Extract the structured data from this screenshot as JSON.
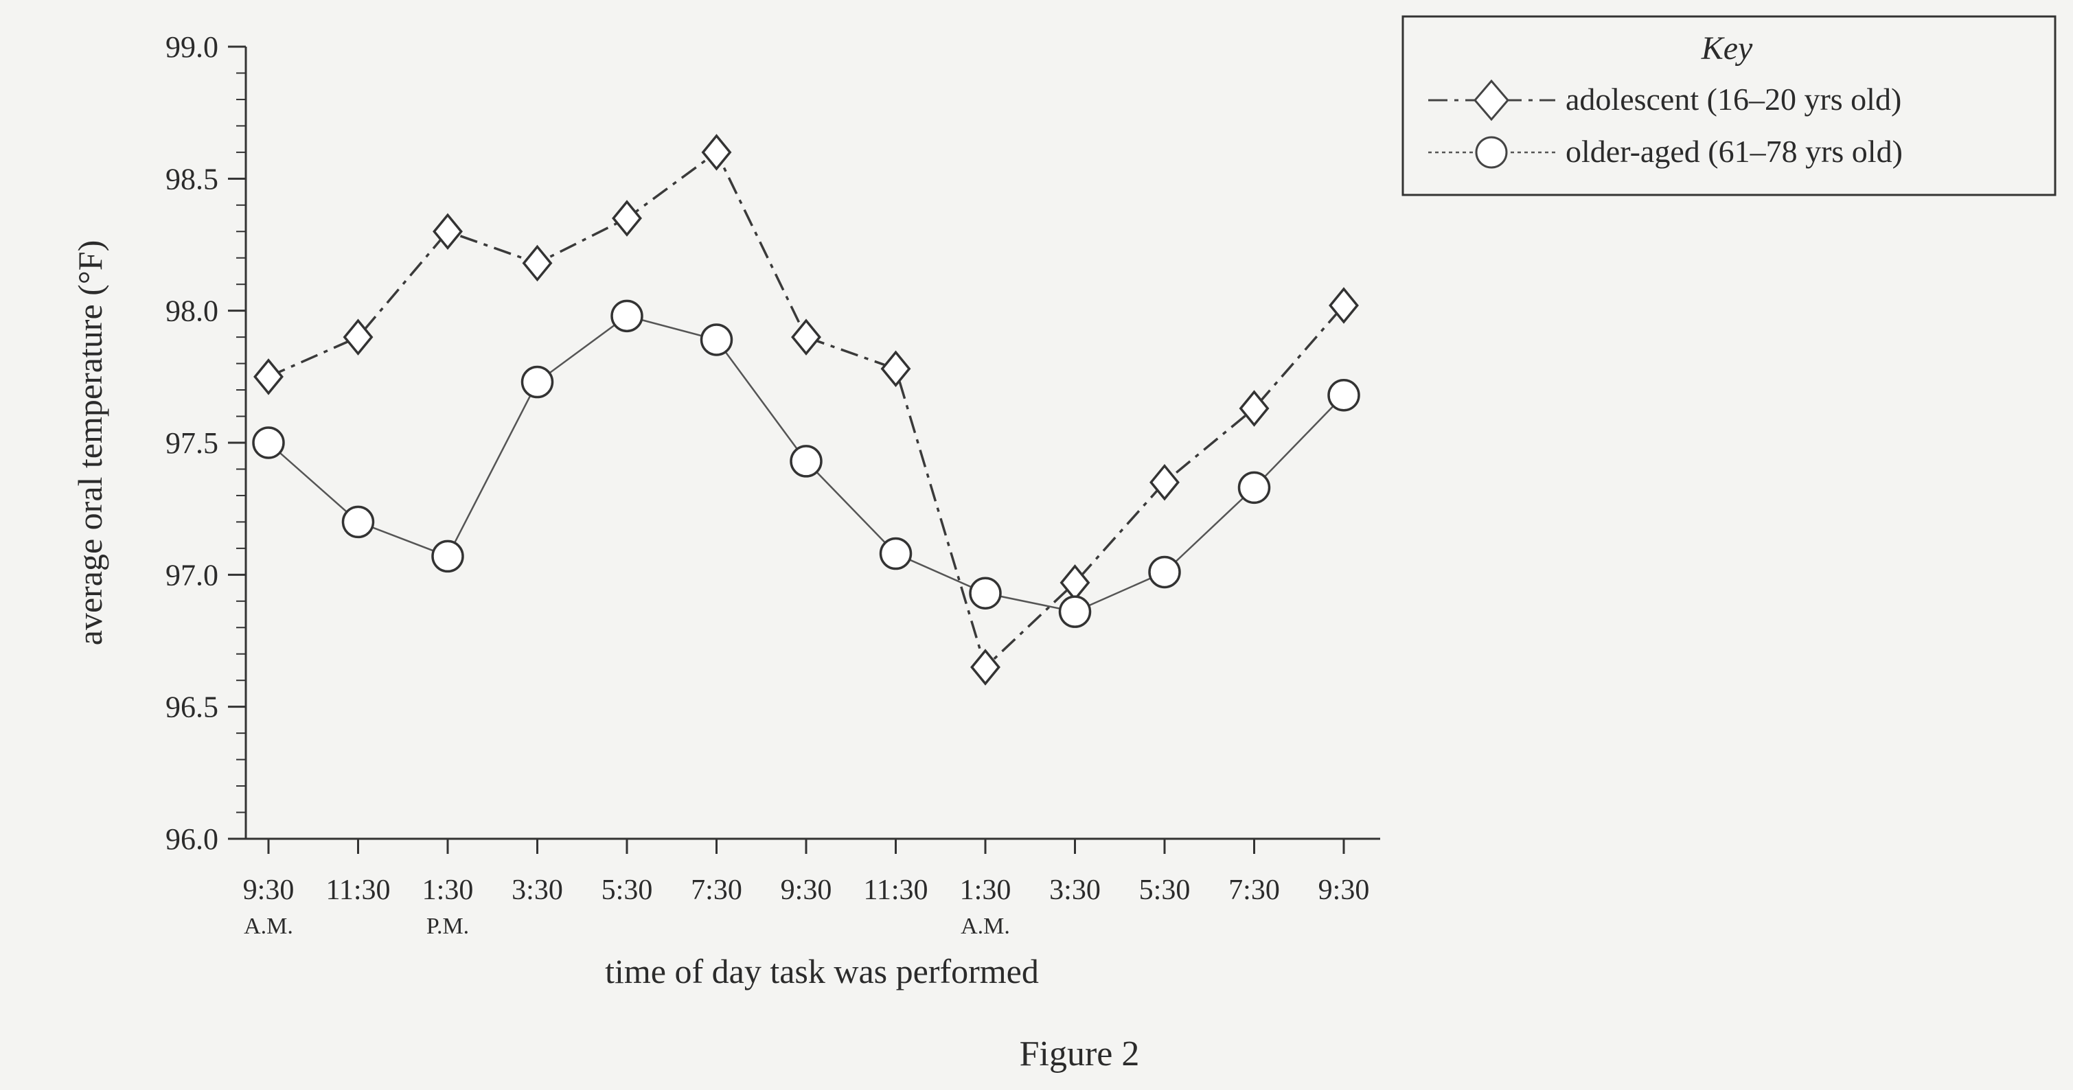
{
  "chart_data": {
    "type": "line",
    "xlabel": "time of day task was performed",
    "ylabel": "average oral temperature (°F)",
    "ylim": [
      96.0,
      99.0
    ],
    "yticks": [
      "96.0",
      "96.5",
      "97.0",
      "97.5",
      "98.0",
      "98.5",
      "99.0"
    ],
    "categories": [
      "9:30",
      "11:30",
      "1:30",
      "3:30",
      "5:30",
      "7:30",
      "9:30",
      "11:30",
      "1:30",
      "3:30",
      "5:30",
      "7:30",
      "9:30"
    ],
    "period_labels": [
      {
        "index": 0,
        "text": "A.M."
      },
      {
        "index": 2,
        "text": "P.M."
      },
      {
        "index": 8,
        "text": "A.M."
      }
    ],
    "legend": {
      "title": "Key",
      "placement": "top-right"
    },
    "series": [
      {
        "name": "adolescent (16–20 yrs old)",
        "marker": "diamond",
        "line_style": "dash-dot",
        "values": [
          97.75,
          97.9,
          98.3,
          98.18,
          98.35,
          98.6,
          97.9,
          97.78,
          96.65,
          96.97,
          97.35,
          97.63,
          98.02
        ]
      },
      {
        "name": "older-aged (61–78 yrs old)",
        "marker": "circle",
        "line_style": "solid-thin",
        "values": [
          97.5,
          97.2,
          97.07,
          97.73,
          97.98,
          97.89,
          97.43,
          97.08,
          96.93,
          96.86,
          97.01,
          97.33,
          97.68
        ]
      }
    ],
    "grid": false,
    "caption": "Figure 2"
  }
}
